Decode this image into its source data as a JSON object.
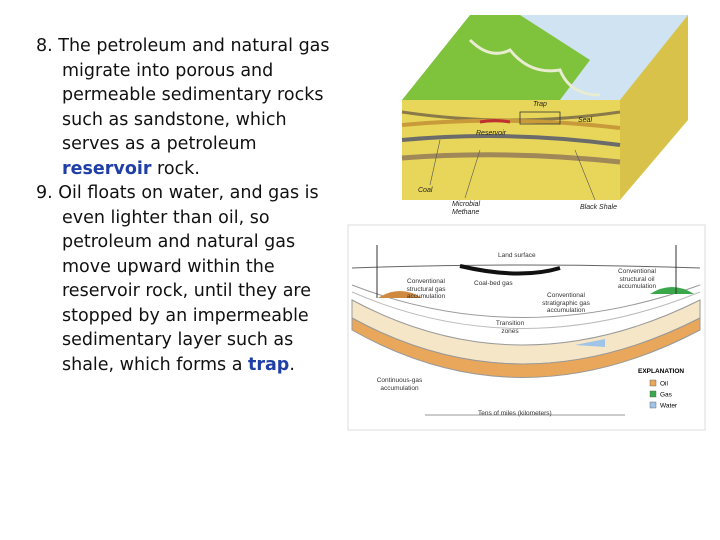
{
  "slide": {
    "items": [
      {
        "number": "8.",
        "segments": [
          {
            "text": "The petroleum and natural gas migrate into porous and permeable sedimentary rocks such as sandstone, which serves as a petroleum "
          },
          {
            "text": "reservoir",
            "emphasis": true
          },
          {
            "text": " rock."
          }
        ]
      },
      {
        "number": "9.",
        "segments": [
          {
            "text": "Oil floats on water, and gas is even lighter than oil, so petroleum and natural gas move upward within the reservoir rock, until they are stopped by an impermeable sedimentary layer such as shale, which forms a "
          },
          {
            "text": "trap",
            "emphasis": true
          },
          {
            "text": "."
          }
        ]
      }
    ],
    "emphasis_color": "#1f3fa6"
  },
  "figure_top": {
    "labels": [
      "Trap",
      "Seal",
      "Reservoir",
      "Coal",
      "Microbial Methane",
      "Black Shale"
    ]
  },
  "figure_bottom": {
    "labels": [
      "Land surface",
      "Conventional structural oil accumulation",
      "Conventional structural gas accumulation",
      "Coal-bed gas",
      "Conventional stratigraphic gas accumulation",
      "Transition zones",
      "Continuous-gas accumulation",
      "Tens of miles (kilometers)"
    ],
    "legend_title": "EXPLANATION",
    "legend": [
      {
        "name": "Oil",
        "color": "#e8a75a"
      },
      {
        "name": "Gas",
        "color": "#3aa84a"
      },
      {
        "name": "Water",
        "color": "#9fc4e8"
      }
    ]
  }
}
